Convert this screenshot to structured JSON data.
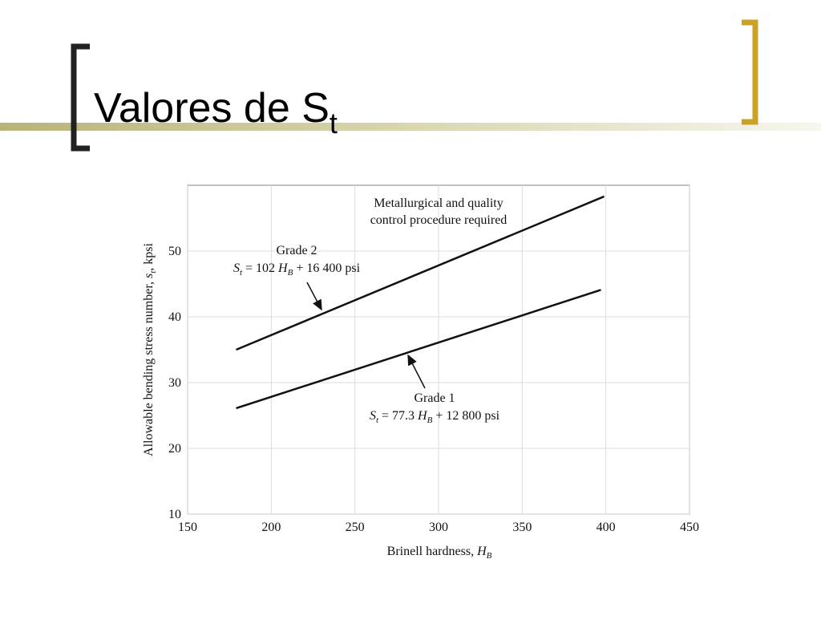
{
  "header": {
    "title": [
      "Valores de S",
      "t"
    ]
  },
  "chart_data": {
    "type": "line",
    "x_label": [
      "Brinell hardness, ",
      "H",
      "B"
    ],
    "y_label": [
      "Allowable bending stress number, ",
      "s",
      "t",
      ", kpsi"
    ],
    "xlim": [
      150,
      450
    ],
    "xticks": [
      150,
      200,
      250,
      300,
      350,
      400,
      450
    ],
    "ylim": [
      10,
      60
    ],
    "yticks": [
      10,
      20,
      30,
      40,
      50
    ],
    "grid": true,
    "series": [
      {
        "name": "Grade 1",
        "color": "#111111",
        "x": [
          179,
          397
        ],
        "values": [
          26.1,
          44.1
        ],
        "formula": [
          "S",
          "t",
          " = 77.3 ",
          "H",
          "B",
          " + 12 800 psi"
        ]
      },
      {
        "name": "Grade 2",
        "color": "#111111",
        "x": [
          179,
          399
        ],
        "values": [
          35,
          58.3
        ],
        "formula": [
          "S",
          "t",
          " = 102 ",
          "H",
          "B",
          " + 16 400 psi"
        ]
      }
    ],
    "annotations": [
      {
        "lines": [
          "Metallurgical and quality",
          "control procedure required"
        ]
      }
    ]
  }
}
